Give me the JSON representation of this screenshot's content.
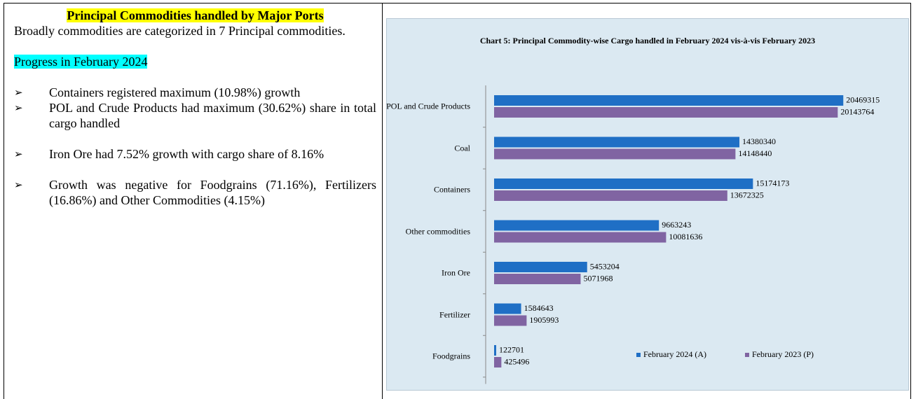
{
  "left": {
    "title": "Principal Commodities handled by Major Ports",
    "intro": "Broadly commodities are categorized in 7 Principal commodities.",
    "subheading": "Progress in February 2024",
    "bullets": [
      "Containers registered maximum (10.98%) growth",
      "POL and Crude Products had maximum (30.62%) share in total cargo handled",
      "Iron Ore had 7.52% growth with cargo share of 8.16%",
      "Growth was negative for Foodgrains (71.16%), Fertilizers (16.86%) and Other Commodities (4.15%)"
    ]
  },
  "chart_data": {
    "type": "hbar",
    "title": "Chart 5: Principal Commodity-wise Cargo handled  in February 2024 vis-à-vis February 2023",
    "categories": [
      "POL and Crude Products",
      "Coal",
      "Containers",
      "Other commodities",
      "Iron Ore",
      "Fertilizer",
      "Foodgrains"
    ],
    "series": [
      {
        "name": "February 2024 (A)",
        "color": "#1f6fc5",
        "values": [
          20469315,
          14380340,
          15174173,
          9663243,
          5453204,
          1584643,
          122701
        ]
      },
      {
        "name": "February 2023 (P)",
        "color": "#8064a2",
        "values": [
          20143764,
          14148440,
          13672325,
          10081636,
          5071968,
          1905993,
          425496
        ]
      }
    ],
    "xlim": [
      0,
      20500000
    ]
  }
}
